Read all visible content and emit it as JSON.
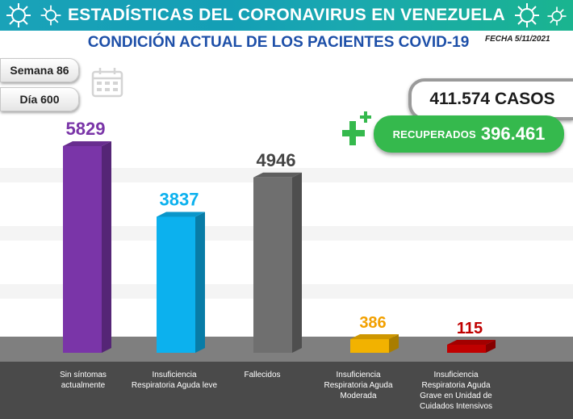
{
  "header": {
    "title": "ESTADÍSTICAS DEL CORONAVIRUS EN VENEZUELA",
    "subtitle": "CONDICIÓN ACTUAL DE LOS PACIENTES COVID-19",
    "date": "FECHA 5/11/2021"
  },
  "period": {
    "week": "Semana 86",
    "day": "Día 600"
  },
  "totals": {
    "cases": "411.574 CASOS",
    "recovered_label": "RECUPERADOS",
    "recovered_value": "396.461"
  },
  "icons": {
    "virus": "virus-icon",
    "calendar": "calendar-icon",
    "plus": "plus-icon"
  },
  "colors": {
    "banner": "#1aa2b8",
    "subtitle": "#1d4fa8",
    "recovered": "#35b94d",
    "floor": "#4a4a4a"
  },
  "chart_data": {
    "type": "bar",
    "categories": [
      "Sin síntomas actualmente",
      "Insuficiencia Respiratoria Aguda leve",
      "Fallecidos",
      "Insuficiencia Respiratoria Aguda Moderada",
      "Insuficiencia Respiratoria Aguda Grave en Unidad de Cuidados Intensivos"
    ],
    "values": [
      5829,
      3837,
      4946,
      386,
      115
    ],
    "value_labels": [
      "5829",
      "3837",
      "4946",
      "386",
      "115"
    ],
    "colors": [
      "#7a35a8",
      "#0cb1ee",
      "#6f6f6f",
      "#f2b200",
      "#c00000"
    ],
    "label_colors": [
      "#7a35a8",
      "#0cb1ee",
      "#444444",
      "#f2a000",
      "#c00000"
    ],
    "ylim": [
      0,
      6000
    ],
    "grid": true,
    "legend": "none"
  }
}
